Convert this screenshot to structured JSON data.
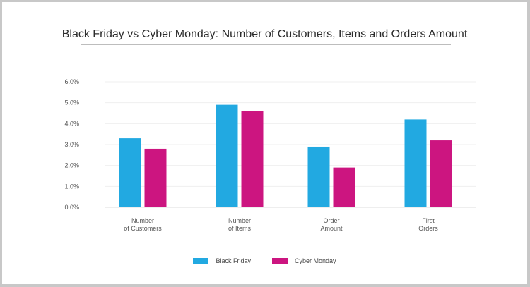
{
  "chart_data": {
    "type": "bar",
    "title": "Black Friday vs Cyber Monday: Number of Customers, Items and Orders Amount",
    "categories": [
      [
        "Number",
        "of Customers"
      ],
      [
        "Number",
        "of Items"
      ],
      [
        "Order",
        "Amount"
      ],
      [
        "First",
        "Orders"
      ]
    ],
    "series": [
      {
        "name": "Black Friday",
        "color": "#22a9e1",
        "values": [
          3.3,
          4.9,
          2.9,
          4.2
        ]
      },
      {
        "name": "Cyber Monday",
        "color": "#cc1580",
        "values": [
          2.8,
          4.6,
          1.9,
          3.2
        ]
      }
    ],
    "yticks": [
      "0.0%",
      "1.0%",
      "2.0%",
      "3.0%",
      "4.0%",
      "5.0%",
      "6.0%"
    ],
    "ylim": [
      0,
      6
    ],
    "unit": "%",
    "grid": true,
    "legend_position": "bottom-center"
  }
}
